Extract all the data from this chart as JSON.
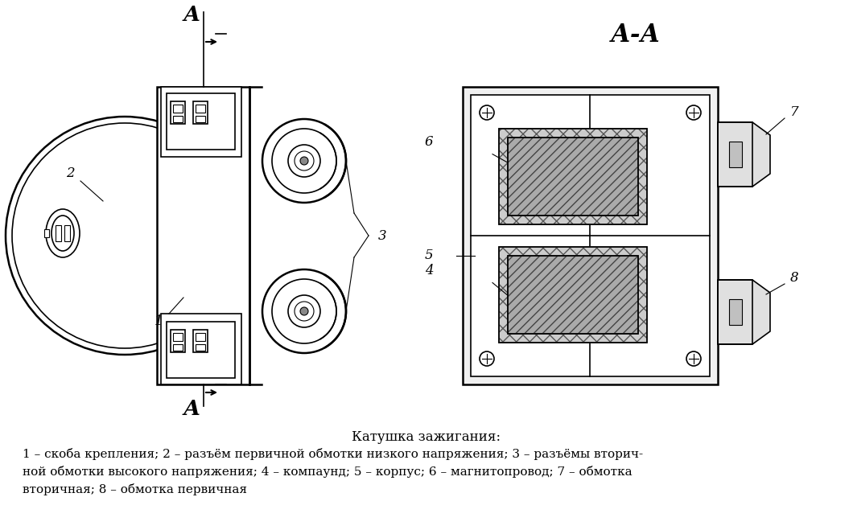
{
  "title_aa": "А-А",
  "caption_title": "Катушка зажигания:",
  "caption_body": "1 – скоба крепления; 2 – разъём первичной обмотки низкого напряжения; 3 – разъёмы вторич-\nной обмотки высокого напряжения; 4 – компаунд; 5 – корпус; 6 – магнитопровод; 7 – обмотка\nвторичная; 8 – обмотка первичная",
  "bg_color": "#ffffff",
  "line_color": "#000000"
}
